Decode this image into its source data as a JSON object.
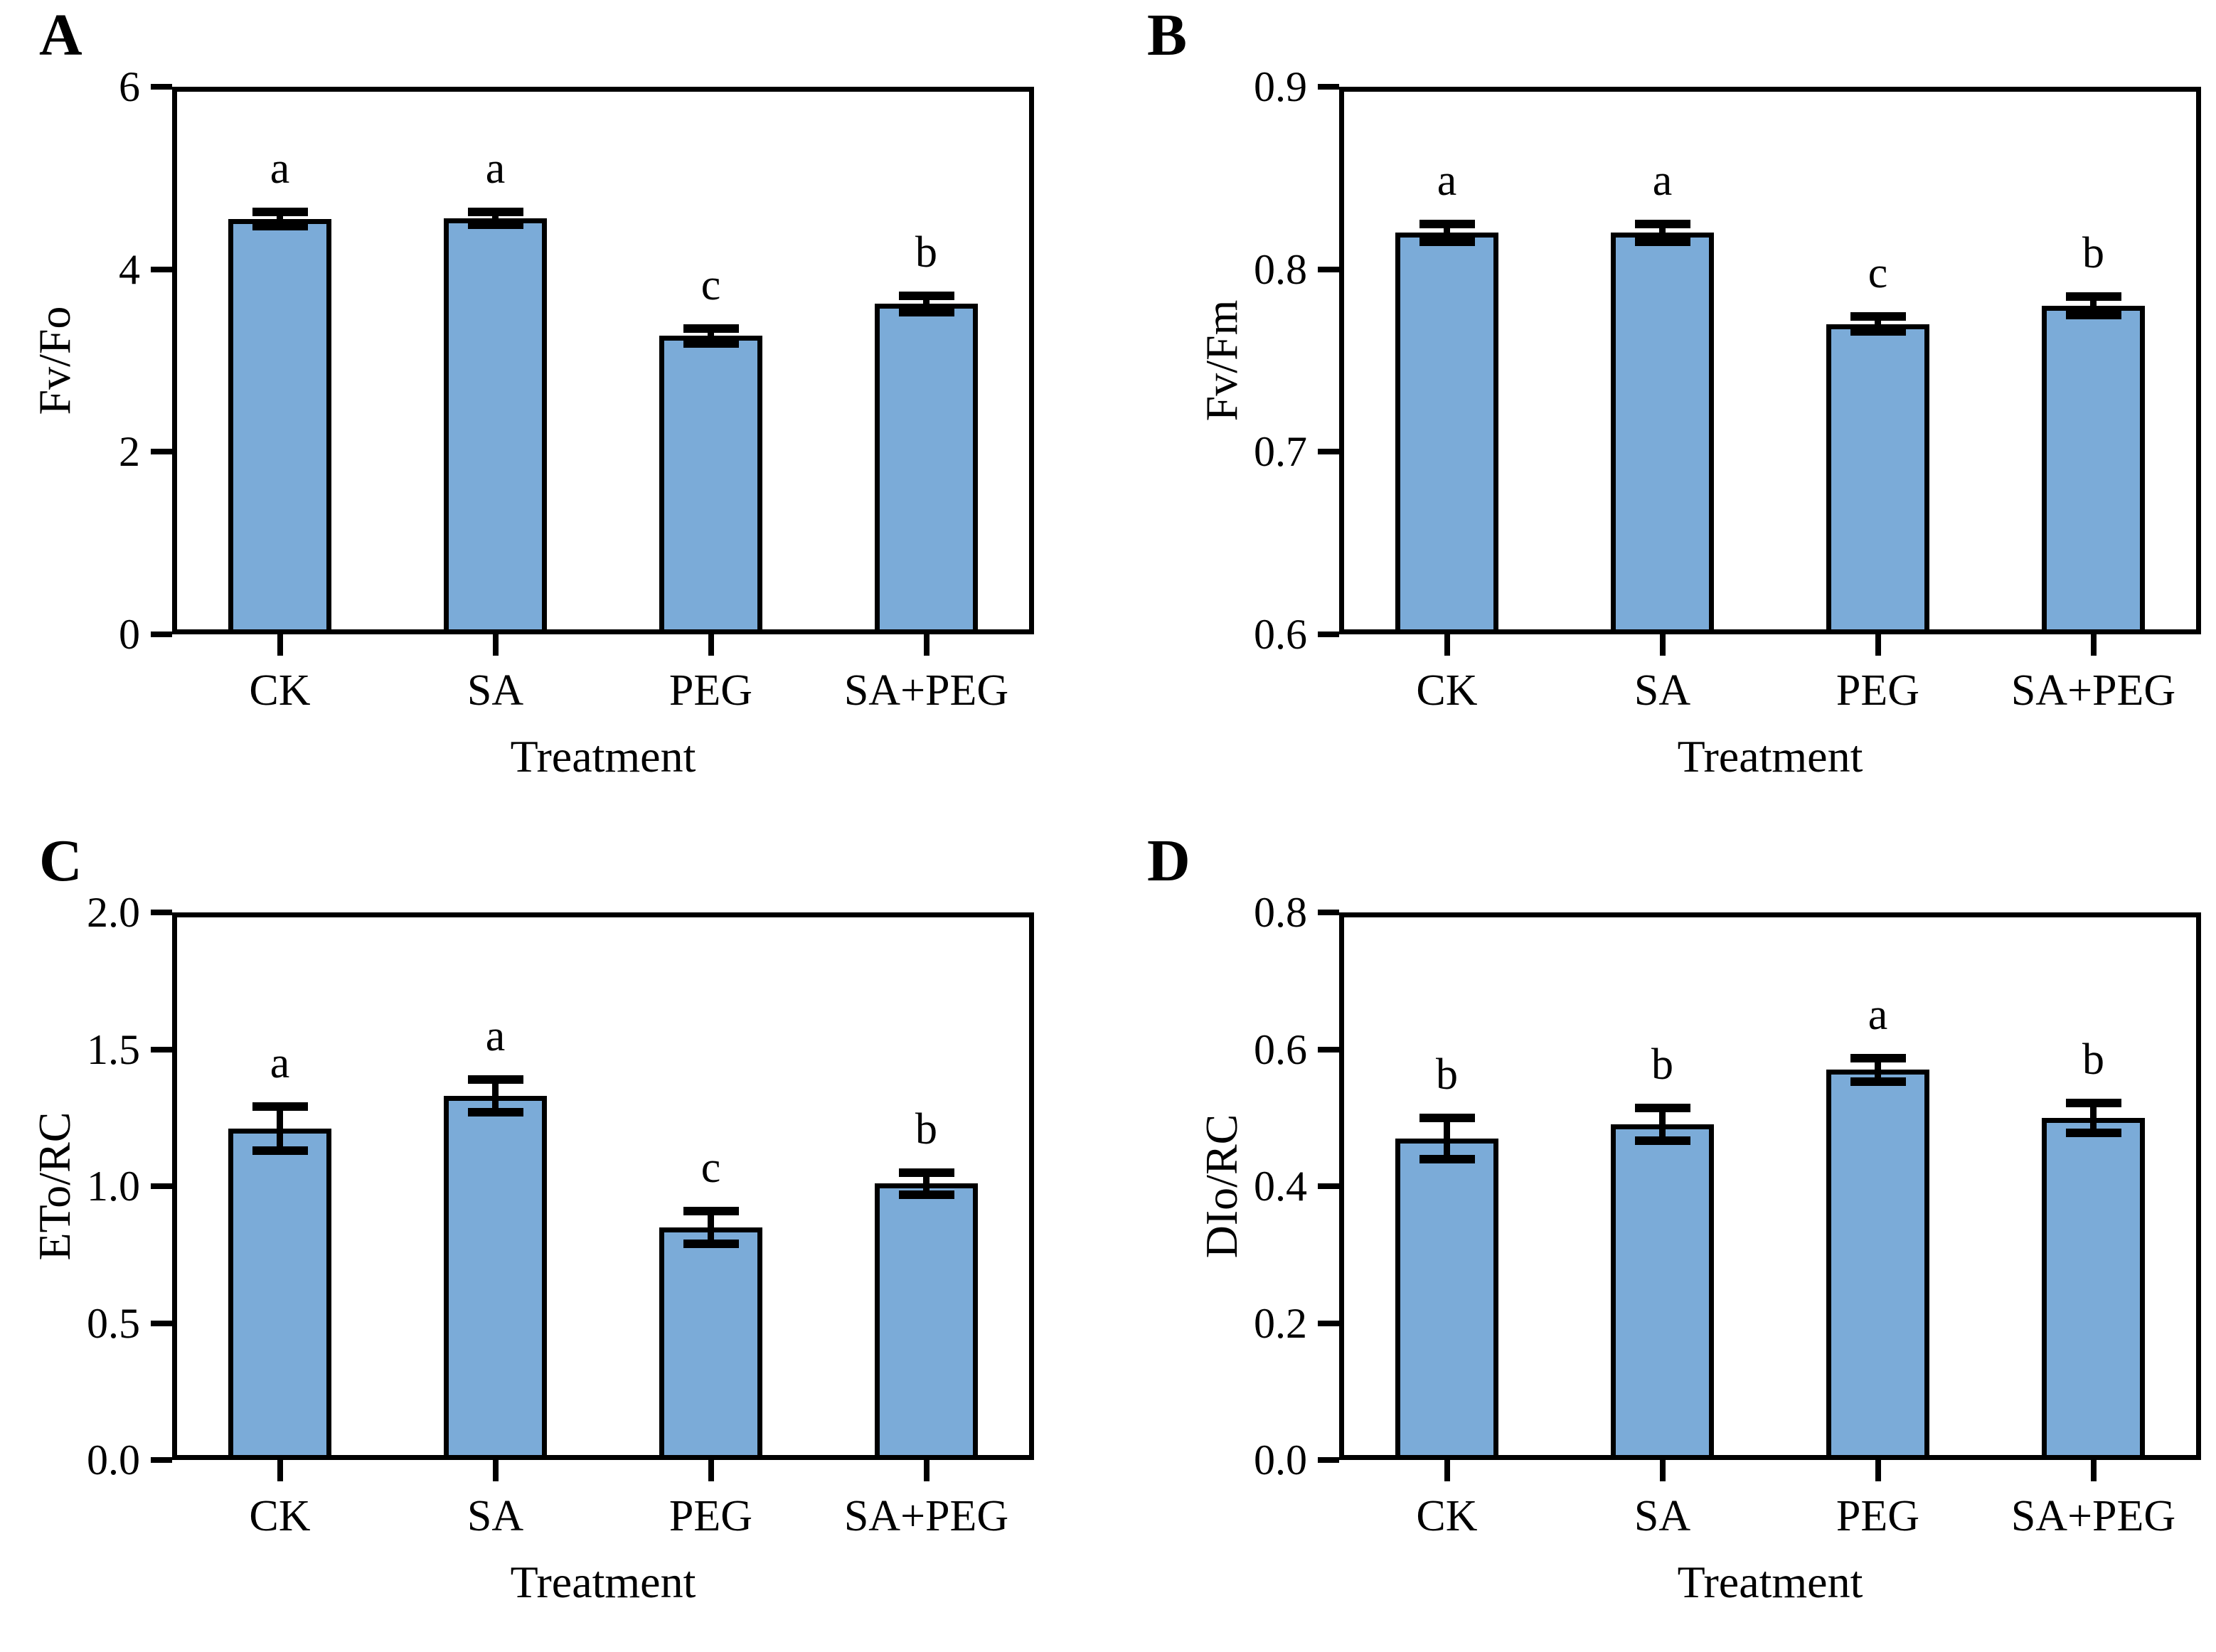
{
  "figure": {
    "background_color": "#ffffff",
    "axis_color": "#000000",
    "bar_fill_color": "#7BABD8",
    "bar_border_color": "#000000"
  },
  "chart_data": [
    {
      "type": "bar",
      "panel_label": "A",
      "title": "",
      "ylabel": "Fv/Fo",
      "xlabel": "Treatment",
      "categories": [
        "CK",
        "SA",
        "PEG",
        "SA+PEG"
      ],
      "values": [
        4.55,
        4.56,
        3.27,
        3.62
      ],
      "errors": [
        0.08,
        0.07,
        0.08,
        0.09
      ],
      "sig_letters": [
        "a",
        "a",
        "c",
        "b"
      ],
      "ylim": [
        0,
        6
      ],
      "yticks": [
        0,
        2,
        4,
        6
      ],
      "ytick_labels": [
        "0",
        "2",
        "4",
        "6"
      ],
      "grid": false,
      "legend": "none",
      "bar_color": "#7BABD8"
    },
    {
      "type": "bar",
      "panel_label": "B",
      "title": "",
      "ylabel": "Fv/Fm",
      "xlabel": "Treatment",
      "categories": [
        "CK",
        "SA",
        "PEG",
        "SA+PEG"
      ],
      "values": [
        0.82,
        0.82,
        0.77,
        0.78
      ],
      "errors": [
        0.005,
        0.005,
        0.004,
        0.005
      ],
      "sig_letters": [
        "a",
        "a",
        "c",
        "b"
      ],
      "ylim": [
        0.6,
        0.9
      ],
      "yticks": [
        0.6,
        0.7,
        0.8,
        0.9
      ],
      "ytick_labels": [
        "0.6",
        "0.7",
        "0.8",
        "0.9"
      ],
      "grid": false,
      "legend": "none",
      "bar_color": "#7BABD8"
    },
    {
      "type": "bar",
      "panel_label": "C",
      "title": "",
      "ylabel": "ETo/RC",
      "xlabel": "Treatment",
      "categories": [
        "CK",
        "SA",
        "PEG",
        "SA+PEG"
      ],
      "values": [
        1.21,
        1.33,
        0.85,
        1.01
      ],
      "errors": [
        0.08,
        0.06,
        0.06,
        0.04
      ],
      "sig_letters": [
        "a",
        "a",
        "c",
        "b"
      ],
      "ylim": [
        0,
        2
      ],
      "yticks": [
        0,
        0.5,
        1,
        1.5,
        2
      ],
      "ytick_labels": [
        "0.0",
        "0.5",
        "1.0",
        "1.5",
        "2.0"
      ],
      "grid": false,
      "legend": "none",
      "bar_color": "#7BABD8"
    },
    {
      "type": "bar",
      "panel_label": "D",
      "title": "",
      "ylabel": "DIo/RC",
      "xlabel": "Treatment",
      "categories": [
        "CK",
        "SA",
        "PEG",
        "SA+PEG"
      ],
      "values": [
        0.47,
        0.49,
        0.57,
        0.5
      ],
      "errors": [
        0.03,
        0.024,
        0.017,
        0.022
      ],
      "sig_letters": [
        "b",
        "b",
        "a",
        "b"
      ],
      "ylim": [
        0,
        0.8
      ],
      "yticks": [
        0,
        0.2,
        0.4,
        0.6,
        0.8
      ],
      "ytick_labels": [
        "0.0",
        "0.2",
        "0.4",
        "0.6",
        "0.8"
      ],
      "grid": false,
      "legend": "none",
      "bar_color": "#7BABD8"
    }
  ]
}
